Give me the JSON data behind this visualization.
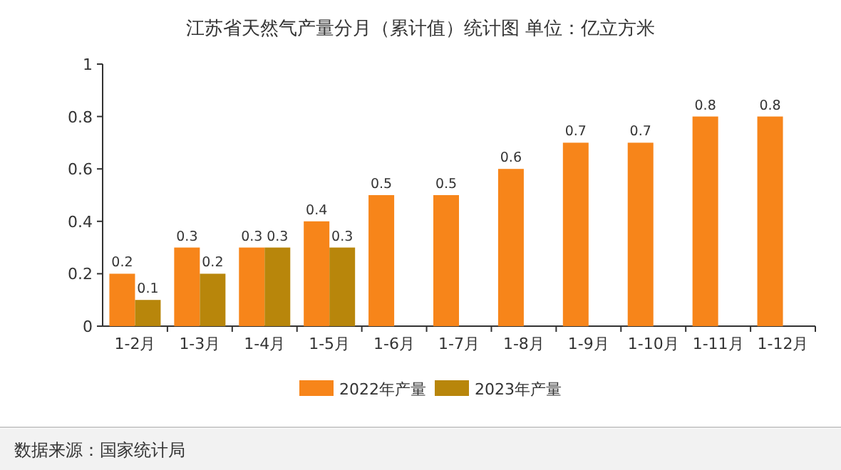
{
  "chart_data": {
    "type": "bar",
    "title": "江苏省天然气产量分月（累计值）统计图 单位：亿立方米",
    "categories": [
      "1-2月",
      "1-3月",
      "1-4月",
      "1-5月",
      "1-6月",
      "1-7月",
      "1-8月",
      "1-9月",
      "1-10月",
      "1-11月",
      "1-12月"
    ],
    "series": [
      {
        "name": "2022年产量",
        "color": "#f7851a",
        "values": [
          0.2,
          0.3,
          0.3,
          0.4,
          0.5,
          0.5,
          0.6,
          0.7,
          0.7,
          0.8,
          0.8
        ]
      },
      {
        "name": "2023年产量",
        "color": "#b8860b",
        "values": [
          0.1,
          0.2,
          0.3,
          0.3,
          null,
          null,
          null,
          null,
          null,
          null,
          null
        ]
      }
    ],
    "ylim": [
      0,
      1
    ],
    "yticks": [
      0,
      0.2,
      0.4,
      0.6,
      0.8,
      1
    ],
    "data_labels": true,
    "legend": "bottom",
    "annotations": [
      "数据来源：国家统计局"
    ]
  }
}
